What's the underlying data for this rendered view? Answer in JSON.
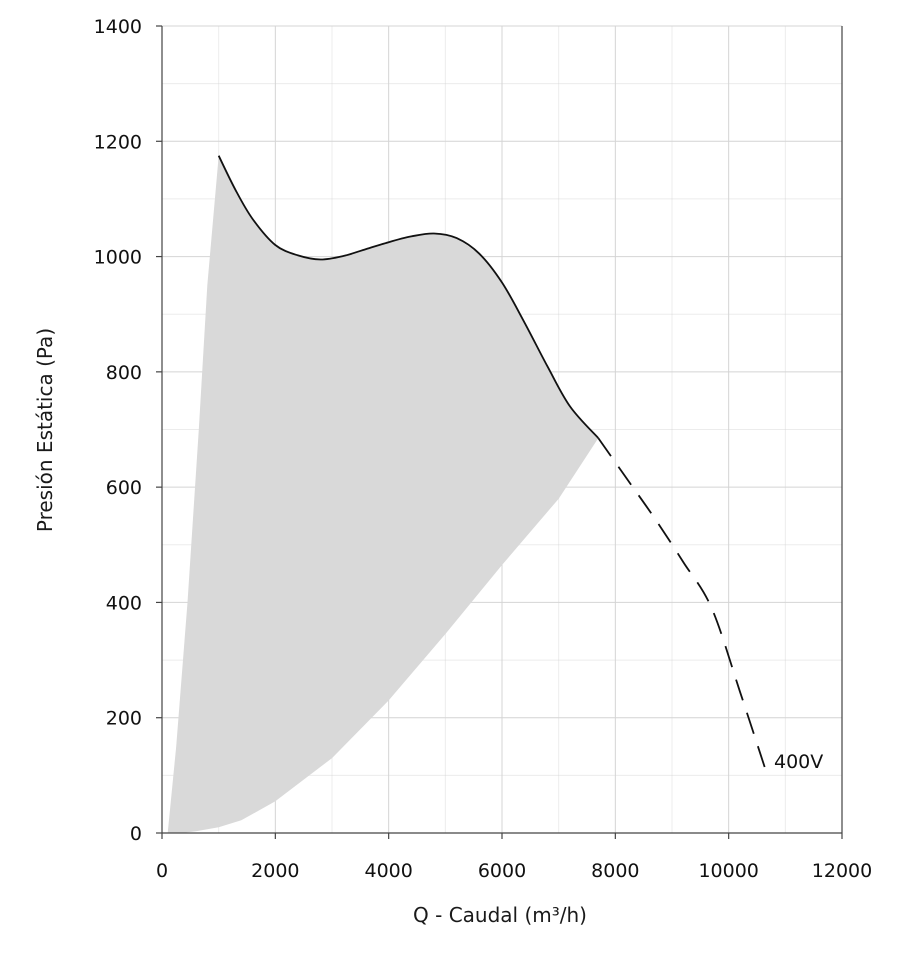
{
  "chart_data": {
    "type": "line",
    "title": "",
    "xlabel": "Q - Caudal (m³/h)",
    "ylabel": "Presión Estática (Pa)",
    "xlim": [
      0,
      12000
    ],
    "ylim": [
      0,
      1400
    ],
    "xticks": [
      0,
      2000,
      4000,
      6000,
      8000,
      10000,
      12000
    ],
    "yticks": [
      0,
      200,
      400,
      600,
      800,
      1000,
      1200,
      1400
    ],
    "grid": true,
    "colors": {
      "curve": "#111111",
      "area": "#d9d9d9",
      "grid": "#d4d4d4"
    },
    "series": [
      {
        "name": "400V",
        "style": "solid",
        "x": [
          1000,
          1300,
          1600,
          2000,
          2400,
          2800,
          3200,
          3600,
          4000,
          4400,
          4800,
          5200,
          5600,
          6000,
          6400,
          6800,
          7200,
          7700
        ],
        "y": [
          1175,
          1115,
          1065,
          1020,
          1002,
          995,
          1001,
          1013,
          1025,
          1035,
          1040,
          1032,
          1005,
          955,
          885,
          810,
          740,
          685
        ]
      },
      {
        "name": "400V",
        "style": "dashed",
        "x": [
          7700,
          8200,
          8700,
          9200,
          9700,
          10200,
          10700
        ],
        "y": [
          685,
          615,
          545,
          470,
          390,
          245,
          95
        ]
      }
    ],
    "operating_area": {
      "upper_x": [
        1000,
        1300,
        1600,
        2000,
        2400,
        2800,
        3200,
        3600,
        4000,
        4400,
        4800,
        5200,
        5600,
        6000,
        6400,
        6800,
        7200,
        7700
      ],
      "upper_y": [
        1175,
        1115,
        1065,
        1020,
        1002,
        995,
        1001,
        1013,
        1025,
        1035,
        1040,
        1032,
        1005,
        955,
        885,
        810,
        740,
        685
      ],
      "lower_x": [
        7700,
        7000,
        6000,
        5000,
        4000,
        3000,
        2000,
        1400,
        1000,
        600,
        350,
        100
      ],
      "lower_y": [
        685,
        580,
        465,
        345,
        230,
        130,
        55,
        22,
        10,
        3,
        0,
        0
      ],
      "left_x": [
        100,
        250,
        450,
        650,
        800,
        1000
      ],
      "left_y": [
        0,
        150,
        400,
        700,
        950,
        1175
      ]
    },
    "annotations": [
      {
        "text": "400V",
        "x": 10800,
        "y": 125
      }
    ]
  }
}
